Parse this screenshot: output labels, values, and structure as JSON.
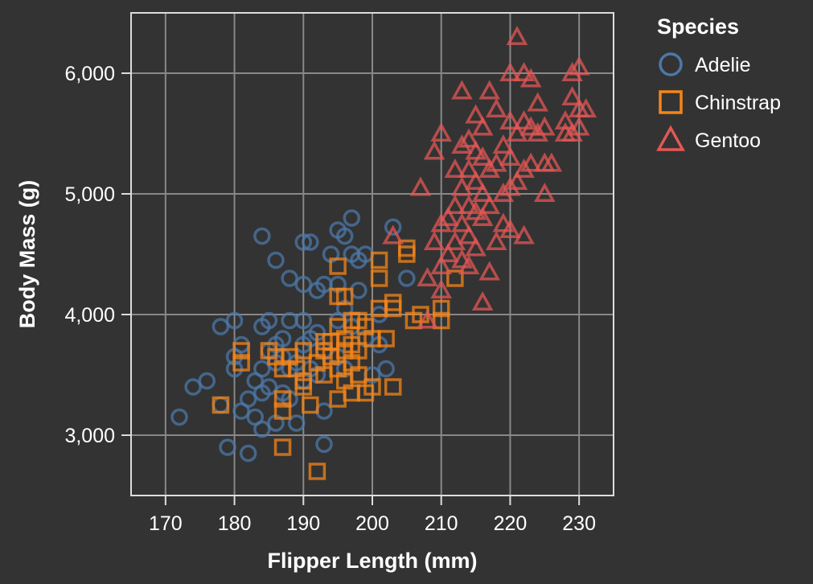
{
  "chart_data": {
    "type": "scatter",
    "xlabel": "Flipper Length (mm)",
    "ylabel": "Body Mass (g)",
    "xlim": [
      165,
      235
    ],
    "ylim": [
      2500,
      6500
    ],
    "xticks": [
      170,
      180,
      190,
      200,
      210,
      220,
      230
    ],
    "yticks": [
      3000,
      4000,
      5000,
      6000
    ],
    "xtick_labels": [
      "170",
      "180",
      "190",
      "200",
      "210",
      "220",
      "230"
    ],
    "ytick_labels": [
      "3,000",
      "4,000",
      "5,000",
      "6,000"
    ],
    "grid": true,
    "background": "#333333",
    "grid_color": "#888888",
    "legend": {
      "title": "Species",
      "placement": "top-right"
    },
    "series": [
      {
        "name": "Adelie",
        "shape": "circle",
        "color": "#4c78a8",
        "points": [
          [
            172,
            3150
          ],
          [
            174,
            3400
          ],
          [
            176,
            3450
          ],
          [
            178,
            3900
          ],
          [
            178,
            3250
          ],
          [
            179,
            2900
          ],
          [
            180,
            3950
          ],
          [
            180,
            3650
          ],
          [
            180,
            3550
          ],
          [
            181,
            3750
          ],
          [
            181,
            3200
          ],
          [
            182,
            3300
          ],
          [
            182,
            2850
          ],
          [
            183,
            3450
          ],
          [
            183,
            3150
          ],
          [
            184,
            3900
          ],
          [
            184,
            4650
          ],
          [
            184,
            3550
          ],
          [
            184,
            3350
          ],
          [
            184,
            3050
          ],
          [
            185,
            3700
          ],
          [
            185,
            3950
          ],
          [
            185,
            3400
          ],
          [
            186,
            4450
          ],
          [
            186,
            3750
          ],
          [
            186,
            3600
          ],
          [
            186,
            3100
          ],
          [
            187,
            3800
          ],
          [
            187,
            3650
          ],
          [
            187,
            3350
          ],
          [
            188,
            4300
          ],
          [
            188,
            3950
          ],
          [
            188,
            3550
          ],
          [
            188,
            3300
          ],
          [
            189,
            3600
          ],
          [
            189,
            3100
          ],
          [
            190,
            4600
          ],
          [
            190,
            4250
          ],
          [
            190,
            3950
          ],
          [
            190,
            3750
          ],
          [
            190,
            3450
          ],
          [
            191,
            4600
          ],
          [
            191,
            3800
          ],
          [
            191,
            3550
          ],
          [
            192,
            4200
          ],
          [
            192,
            3850
          ],
          [
            192,
            3500
          ],
          [
            193,
            4250
          ],
          [
            193,
            3700
          ],
          [
            193,
            3200
          ],
          [
            193,
            2925
          ],
          [
            194,
            4500
          ],
          [
            195,
            4700
          ],
          [
            195,
            4250
          ],
          [
            195,
            3950
          ],
          [
            195,
            3650
          ],
          [
            196,
            4650
          ],
          [
            196,
            4050
          ],
          [
            196,
            3550
          ],
          [
            197,
            4800
          ],
          [
            197,
            4500
          ],
          [
            197,
            3900
          ],
          [
            198,
            4450
          ],
          [
            198,
            4200
          ],
          [
            199,
            4500
          ],
          [
            199,
            3800
          ],
          [
            200,
            3500
          ],
          [
            201,
            4000
          ],
          [
            201,
            3750
          ],
          [
            202,
            3550
          ],
          [
            203,
            4725
          ],
          [
            205,
            4300
          ]
        ]
      },
      {
        "name": "Chinstrap",
        "shape": "square",
        "color": "#f58518",
        "points": [
          [
            178,
            3250
          ],
          [
            181,
            3700
          ],
          [
            181,
            3600
          ],
          [
            185,
            3700
          ],
          [
            186,
            3650
          ],
          [
            187,
            3550
          ],
          [
            187,
            3300
          ],
          [
            187,
            3200
          ],
          [
            187,
            2900
          ],
          [
            188,
            3650
          ],
          [
            189,
            3550
          ],
          [
            190,
            3700
          ],
          [
            190,
            3450
          ],
          [
            190,
            3400
          ],
          [
            191,
            3250
          ],
          [
            192,
            2700
          ],
          [
            192,
            3600
          ],
          [
            193,
            3775
          ],
          [
            193,
            3700
          ],
          [
            193,
            3500
          ],
          [
            194,
            3650
          ],
          [
            194,
            3775
          ],
          [
            195,
            4400
          ],
          [
            195,
            4150
          ],
          [
            195,
            3900
          ],
          [
            195,
            3550
          ],
          [
            195,
            3300
          ],
          [
            196,
            4150
          ],
          [
            196,
            3800
          ],
          [
            196,
            3700
          ],
          [
            196,
            3450
          ],
          [
            197,
            3950
          ],
          [
            197,
            3750
          ],
          [
            197,
            3600
          ],
          [
            197,
            3350
          ],
          [
            198,
            3950
          ],
          [
            198,
            3700
          ],
          [
            198,
            3500
          ],
          [
            199,
            3900
          ],
          [
            199,
            3350
          ],
          [
            200,
            3800
          ],
          [
            200,
            3400
          ],
          [
            201,
            4450
          ],
          [
            201,
            4300
          ],
          [
            201,
            4050
          ],
          [
            202,
            3800
          ],
          [
            203,
            4100
          ],
          [
            203,
            4050
          ],
          [
            203,
            3400
          ],
          [
            205,
            4550
          ],
          [
            205,
            4500
          ],
          [
            206,
            3950
          ],
          [
            207,
            4000
          ],
          [
            210,
            3950
          ],
          [
            210,
            4050
          ],
          [
            212,
            4300
          ]
        ]
      },
      {
        "name": "Gentoo",
        "shape": "triangle",
        "color": "#e45756",
        "points": [
          [
            203,
            4650
          ],
          [
            207,
            5050
          ],
          [
            208,
            3950
          ],
          [
            208,
            4300
          ],
          [
            209,
            4600
          ],
          [
            209,
            5350
          ],
          [
            210,
            4200
          ],
          [
            210,
            4400
          ],
          [
            210,
            4750
          ],
          [
            210,
            5500
          ],
          [
            211,
            4500
          ],
          [
            211,
            4800
          ],
          [
            212,
            4600
          ],
          [
            212,
            4900
          ],
          [
            212,
            5200
          ],
          [
            213,
            4450
          ],
          [
            213,
            4750
          ],
          [
            213,
            5050
          ],
          [
            213,
            5400
          ],
          [
            213,
            5850
          ],
          [
            214,
            4400
          ],
          [
            214,
            4650
          ],
          [
            214,
            4900
          ],
          [
            214,
            5200
          ],
          [
            214,
            5450
          ],
          [
            215,
            4550
          ],
          [
            215,
            4850
          ],
          [
            215,
            5100
          ],
          [
            215,
            5350
          ],
          [
            215,
            5650
          ],
          [
            216,
            4100
          ],
          [
            216,
            4800
          ],
          [
            216,
            5000
          ],
          [
            216,
            5300
          ],
          [
            216,
            5550
          ],
          [
            217,
            4350
          ],
          [
            217,
            4900
          ],
          [
            217,
            5200
          ],
          [
            217,
            5850
          ],
          [
            218,
            4600
          ],
          [
            218,
            5250
          ],
          [
            218,
            5700
          ],
          [
            219,
            4750
          ],
          [
            219,
            5000
          ],
          [
            219,
            5400
          ],
          [
            220,
            4700
          ],
          [
            220,
            5050
          ],
          [
            220,
            5300
          ],
          [
            220,
            5600
          ],
          [
            220,
            6000
          ],
          [
            221,
            5100
          ],
          [
            221,
            5500
          ],
          [
            221,
            6300
          ],
          [
            222,
            4650
          ],
          [
            222,
            5200
          ],
          [
            222,
            5600
          ],
          [
            222,
            6000
          ],
          [
            223,
            5250
          ],
          [
            223,
            5550
          ],
          [
            223,
            5950
          ],
          [
            224,
            5500
          ],
          [
            224,
            5750
          ],
          [
            225,
            5000
          ],
          [
            225,
            5250
          ],
          [
            225,
            5550
          ],
          [
            226,
            5250
          ],
          [
            228,
            5500
          ],
          [
            228,
            5600
          ],
          [
            229,
            5500
          ],
          [
            229,
            5800
          ],
          [
            229,
            6000
          ],
          [
            230,
            5550
          ],
          [
            230,
            5700
          ],
          [
            230,
            6050
          ],
          [
            231,
            5700
          ]
        ]
      }
    ]
  }
}
